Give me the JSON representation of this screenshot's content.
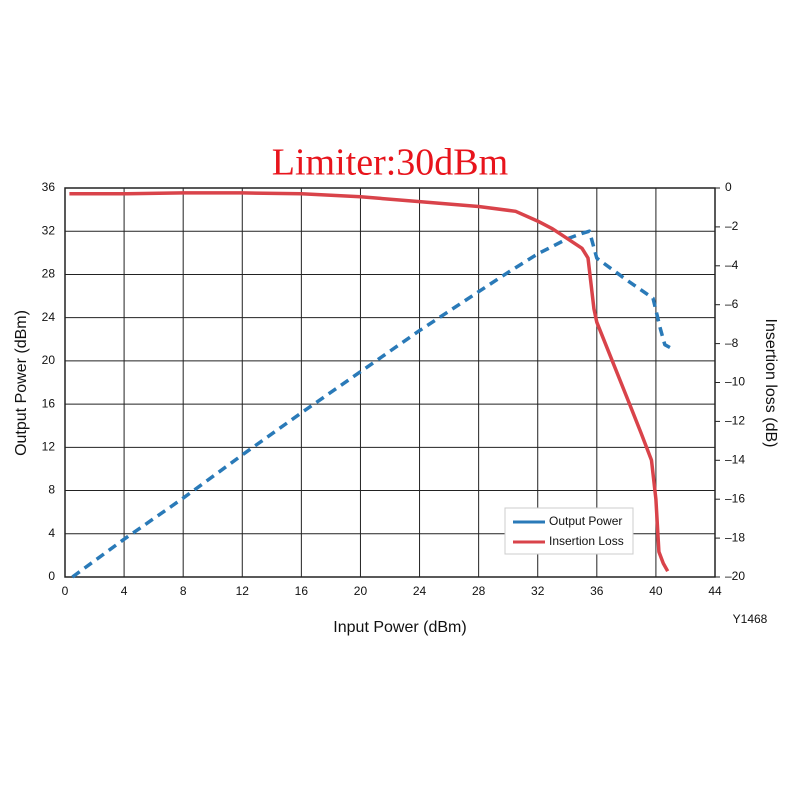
{
  "chart_data": {
    "type": "line",
    "title": "Limiter:30dBm",
    "x_label": "Input Power (dBm)",
    "y_label": "Output Power (dBm)",
    "y2_label": "Insertion loss (dB)",
    "note": "Y1468",
    "xlim": [
      0,
      44
    ],
    "xticks": [
      0,
      4,
      8,
      12,
      16,
      20,
      24,
      28,
      32,
      36,
      40,
      44
    ],
    "ylim": [
      0,
      36
    ],
    "yticks": [
      0,
      4,
      8,
      12,
      16,
      20,
      24,
      28,
      32,
      36
    ],
    "y2lim": [
      -20,
      0
    ],
    "y2ticks": [
      0,
      {
        "value": -2,
        "label": "–2"
      },
      {
        "value": -4,
        "label": "–4"
      },
      {
        "value": -6,
        "label": "–6"
      },
      {
        "value": -8,
        "label": "–8"
      },
      {
        "value": -10,
        "label": "–10"
      },
      {
        "value": -12,
        "label": "–12"
      },
      {
        "value": -14,
        "label": "–14"
      },
      {
        "value": -16,
        "label": "–16"
      },
      {
        "value": -18,
        "label": "–18"
      },
      {
        "value": -20,
        "label": "–20"
      }
    ],
    "grid": true,
    "legend": "lower right",
    "series": [
      {
        "name": "Output Power",
        "color": "#2a7ab8",
        "dashed": true,
        "x": [
          0.5,
          4,
          8,
          12,
          16,
          20,
          24,
          28,
          30,
          32,
          34,
          35,
          35.5,
          36,
          38,
          39.8,
          40.3,
          40.6,
          41
        ],
        "values": [
          0,
          3.5,
          7.3,
          11.3,
          15.2,
          19,
          22.8,
          26.4,
          28.2,
          29.9,
          31.3,
          31.8,
          32,
          29.5,
          27.5,
          25.8,
          23,
          21.5,
          21.2
        ]
      },
      {
        "name": "Insertion Loss",
        "color": "#d9434a",
        "axis": "y2",
        "x": [
          0.3,
          4,
          8,
          12,
          16,
          20,
          24,
          28,
          30.5,
          32,
          33,
          34,
          35,
          35.4,
          35.8,
          36,
          37,
          38,
          39,
          39.7,
          40,
          40.2,
          40.5,
          40.8
        ],
        "values": [
          -0.3,
          -0.3,
          -0.25,
          -0.25,
          -0.3,
          -0.45,
          -0.7,
          -0.95,
          -1.2,
          -1.7,
          -2.1,
          -2.6,
          -3.1,
          -3.6,
          -6.2,
          -6.9,
          -8.8,
          -10.7,
          -12.6,
          -14,
          -16,
          -18.7,
          -19.3,
          -19.7
        ]
      }
    ]
  }
}
